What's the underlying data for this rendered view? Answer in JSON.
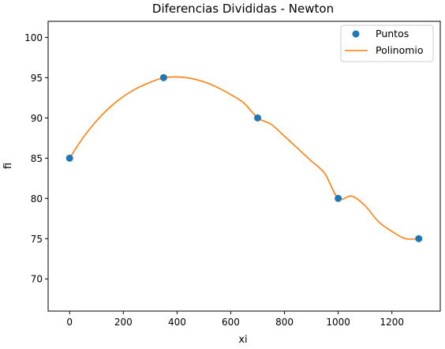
{
  "chart_data": {
    "type": "line",
    "title": "Diferencias Divididas - Newton",
    "xlabel": "xi",
    "ylabel": "fi",
    "xlim": [
      -80,
      1380
    ],
    "ylim": [
      66,
      102
    ],
    "xticks": [
      0,
      200,
      400,
      600,
      800,
      1000,
      1200
    ],
    "yticks": [
      70,
      75,
      80,
      85,
      90,
      95,
      100
    ],
    "grid": false,
    "legend_position": "top-right",
    "series": [
      {
        "name": "Puntos",
        "kind": "scatter",
        "color": "#1f77b4",
        "x": [
          0,
          350,
          700,
          1000,
          1300
        ],
        "y": [
          85,
          95,
          90,
          80,
          75
        ]
      },
      {
        "name": "Polinomio",
        "kind": "line",
        "color": "#ff7f0e",
        "x": [
          0,
          50,
          100,
          150,
          200,
          250,
          300,
          350,
          400,
          450,
          500,
          550,
          600,
          650,
          700,
          750,
          800,
          850,
          900,
          950,
          1000,
          1050,
          1100,
          1150,
          1200,
          1250,
          1300
        ],
        "y": [
          85.0,
          87.54,
          89.63,
          91.32,
          92.66,
          93.67,
          94.42,
          95.0,
          95.09,
          94.92,
          94.48,
          93.79,
          92.89,
          91.81,
          90.0,
          89.21,
          87.73,
          86.19,
          84.63,
          83.09,
          80.0,
          80.29,
          79.09,
          77.1,
          75.9,
          75.0,
          75.0
        ]
      }
    ]
  }
}
